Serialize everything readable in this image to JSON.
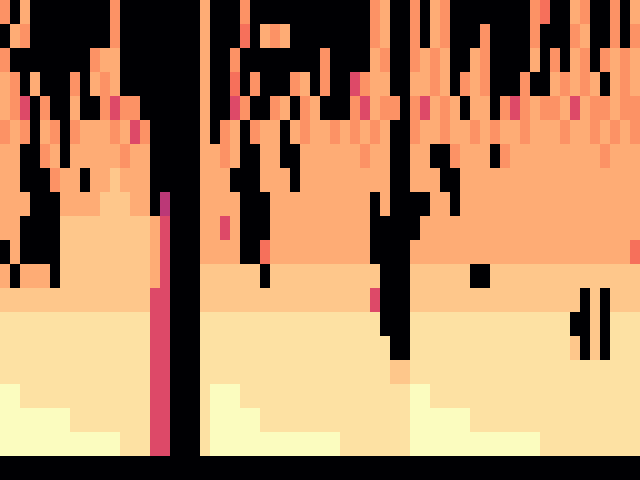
{
  "chart_data": {
    "type": "heatmap",
    "color": "magma",
    "tick_labels": false,
    "cells": [
      [
        75,
        0,
        80,
        0,
        0,
        0,
        0,
        0,
        0,
        0,
        0,
        75,
        0,
        0,
        0,
        0,
        0,
        0,
        0,
        0,
        80,
        0,
        0,
        0,
        75,
        0,
        0,
        0,
        0,
        0,
        0,
        0,
        0,
        0,
        0,
        0,
        0,
        75,
        80,
        0,
        0,
        75,
        0,
        80,
        75,
        0,
        0,
        0,
        0,
        0,
        0,
        0,
        0,
        75,
        68,
        0,
        0,
        80,
        75,
        0,
        0,
        75,
        0,
        80
      ],
      [
        0,
        80,
        75,
        0,
        0,
        0,
        0,
        0,
        0,
        0,
        0,
        75,
        0,
        0,
        0,
        0,
        0,
        0,
        0,
        0,
        80,
        0,
        0,
        0,
        68,
        0,
        80,
        75,
        80,
        0,
        0,
        0,
        0,
        0,
        0,
        0,
        0,
        75,
        80,
        0,
        0,
        75,
        0,
        80,
        75,
        0,
        0,
        0,
        75,
        0,
        0,
        0,
        0,
        75,
        0,
        0,
        0,
        75,
        80,
        0,
        0,
        75,
        0,
        75
      ],
      [
        75,
        0,
        0,
        0,
        0,
        0,
        0,
        0,
        0,
        75,
        80,
        80,
        0,
        0,
        0,
        0,
        0,
        0,
        0,
        0,
        80,
        0,
        0,
        75,
        0,
        0,
        0,
        0,
        0,
        0,
        0,
        0,
        75,
        0,
        0,
        0,
        0,
        80,
        75,
        0,
        0,
        75,
        80,
        75,
        80,
        0,
        0,
        80,
        75,
        0,
        0,
        0,
        0,
        80,
        0,
        75,
        0,
        80,
        75,
        0,
        75,
        80,
        75,
        80
      ],
      [
        80,
        75,
        0,
        80,
        0,
        0,
        0,
        75,
        0,
        80,
        75,
        80,
        0,
        0,
        0,
        0,
        0,
        0,
        0,
        0,
        80,
        0,
        0,
        68,
        0,
        75,
        0,
        0,
        0,
        75,
        80,
        0,
        75,
        0,
        0,
        58,
        75,
        80,
        80,
        0,
        0,
        80,
        80,
        75,
        80,
        0,
        75,
        80,
        75,
        0,
        0,
        0,
        75,
        0,
        0,
        80,
        75,
        80,
        75,
        80,
        0,
        80,
        75,
        80
      ],
      [
        80,
        75,
        58,
        0,
        75,
        0,
        0,
        80,
        0,
        0,
        75,
        58,
        75,
        75,
        0,
        0,
        0,
        0,
        0,
        0,
        80,
        0,
        0,
        58,
        75,
        0,
        0,
        75,
        80,
        0,
        75,
        80,
        0,
        0,
        0,
        75,
        58,
        80,
        75,
        75,
        0,
        75,
        58,
        80,
        75,
        80,
        0,
        80,
        80,
        0,
        75,
        58,
        75,
        80,
        75,
        75,
        80,
        58,
        80,
        75,
        75,
        80,
        75,
        75
      ],
      [
        75,
        80,
        75,
        0,
        80,
        75,
        0,
        75,
        80,
        80,
        80,
        75,
        80,
        58,
        75,
        0,
        0,
        0,
        0,
        0,
        80,
        0,
        75,
        80,
        0,
        75,
        80,
        80,
        0,
        80,
        75,
        80,
        80,
        75,
        80,
        75,
        80,
        75,
        80,
        0,
        0,
        75,
        80,
        80,
        75,
        80,
        80,
        75,
        80,
        75,
        80,
        80,
        75,
        80,
        80,
        80,
        75,
        80,
        80,
        75,
        80,
        75,
        80,
        75
      ],
      [
        80,
        80,
        0,
        0,
        75,
        80,
        0,
        80,
        80,
        80,
        80,
        80,
        75,
        80,
        80,
        0,
        0,
        0,
        0,
        0,
        80,
        80,
        75,
        80,
        0,
        0,
        80,
        80,
        0,
        0,
        80,
        80,
        80,
        80,
        80,
        80,
        75,
        80,
        80,
        0,
        0,
        80,
        80,
        0,
        0,
        75,
        80,
        80,
        80,
        0,
        75,
        80,
        80,
        80,
        80,
        80,
        80,
        80,
        80,
        80,
        75,
        80,
        80,
        80
      ],
      [
        80,
        80,
        0,
        0,
        0,
        75,
        80,
        80,
        0,
        80,
        80,
        86,
        80,
        80,
        80,
        0,
        0,
        0,
        0,
        0,
        80,
        80,
        80,
        0,
        0,
        0,
        80,
        80,
        80,
        0,
        80,
        80,
        80,
        80,
        80,
        80,
        80,
        80,
        80,
        0,
        0,
        80,
        80,
        80,
        0,
        0,
        80,
        80,
        80,
        80,
        80,
        80,
        80,
        80,
        80,
        80,
        80,
        80,
        80,
        80,
        80,
        80,
        80,
        80
      ],
      [
        80,
        80,
        80,
        0,
        0,
        0,
        80,
        80,
        80,
        80,
        86,
        86,
        86,
        80,
        80,
        0,
        50,
        0,
        0,
        0,
        80,
        80,
        80,
        80,
        0,
        0,
        0,
        80,
        80,
        80,
        80,
        80,
        80,
        80,
        80,
        80,
        80,
        0,
        80,
        0,
        0,
        0,
        0,
        80,
        80,
        0,
        80,
        80,
        80,
        80,
        80,
        80,
        80,
        80,
        80,
        80,
        80,
        80,
        80,
        80,
        80,
        80,
        80,
        80
      ],
      [
        80,
        80,
        0,
        0,
        0,
        0,
        86,
        86,
        86,
        86,
        86,
        86,
        86,
        86,
        86,
        80,
        58,
        0,
        0,
        0,
        80,
        80,
        58,
        80,
        0,
        0,
        0,
        80,
        80,
        80,
        80,
        80,
        80,
        80,
        80,
        80,
        80,
        0,
        0,
        0,
        0,
        0,
        80,
        80,
        80,
        80,
        80,
        80,
        80,
        80,
        80,
        80,
        80,
        80,
        80,
        80,
        80,
        80,
        80,
        80,
        80,
        80,
        80,
        80
      ],
      [
        0,
        80,
        0,
        0,
        0,
        0,
        86,
        86,
        86,
        86,
        86,
        86,
        86,
        86,
        86,
        80,
        58,
        0,
        0,
        0,
        80,
        80,
        80,
        80,
        0,
        0,
        68,
        80,
        80,
        80,
        80,
        80,
        80,
        80,
        80,
        80,
        80,
        0,
        0,
        0,
        0,
        80,
        80,
        80,
        80,
        80,
        80,
        80,
        80,
        80,
        80,
        80,
        80,
        80,
        80,
        80,
        80,
        80,
        80,
        80,
        80,
        80,
        80,
        68
      ],
      [
        80,
        0,
        80,
        80,
        80,
        0,
        86,
        86,
        86,
        86,
        86,
        86,
        86,
        86,
        86,
        80,
        58,
        0,
        0,
        0,
        86,
        86,
        86,
        86,
        86,
        86,
        0,
        86,
        86,
        86,
        86,
        86,
        86,
        86,
        86,
        86,
        86,
        86,
        0,
        0,
        0,
        86,
        86,
        86,
        86,
        86,
        86,
        0,
        0,
        86,
        86,
        86,
        86,
        86,
        86,
        86,
        86,
        86,
        86,
        86,
        86,
        86,
        86,
        86
      ],
      [
        86,
        86,
        86,
        86,
        86,
        86,
        86,
        86,
        86,
        86,
        86,
        86,
        86,
        86,
        86,
        58,
        58,
        0,
        0,
        0,
        86,
        86,
        86,
        86,
        86,
        86,
        86,
        86,
        86,
        86,
        86,
        86,
        86,
        86,
        86,
        86,
        86,
        58,
        0,
        0,
        0,
        86,
        86,
        86,
        86,
        86,
        86,
        86,
        86,
        86,
        86,
        86,
        86,
        86,
        86,
        86,
        86,
        86,
        0,
        86,
        0,
        86,
        86,
        86
      ],
      [
        91,
        91,
        91,
        91,
        91,
        91,
        91,
        91,
        91,
        91,
        91,
        91,
        91,
        91,
        91,
        58,
        58,
        0,
        0,
        0,
        91,
        91,
        91,
        91,
        91,
        91,
        91,
        91,
        91,
        91,
        91,
        91,
        91,
        91,
        91,
        91,
        91,
        91,
        0,
        0,
        0,
        91,
        91,
        91,
        91,
        91,
        91,
        91,
        91,
        91,
        91,
        91,
        91,
        91,
        91,
        91,
        91,
        0,
        0,
        86,
        0,
        91,
        91,
        91
      ],
      [
        91,
        91,
        91,
        91,
        91,
        91,
        91,
        91,
        91,
        91,
        91,
        91,
        91,
        91,
        91,
        58,
        58,
        0,
        0,
        0,
        91,
        91,
        91,
        91,
        91,
        91,
        91,
        91,
        91,
        91,
        91,
        91,
        91,
        91,
        91,
        91,
        91,
        91,
        91,
        0,
        0,
        91,
        91,
        91,
        91,
        91,
        91,
        91,
        91,
        91,
        91,
        91,
        91,
        91,
        91,
        91,
        91,
        86,
        0,
        86,
        0,
        91,
        91,
        91
      ],
      [
        91,
        91,
        91,
        91,
        91,
        91,
        91,
        91,
        91,
        91,
        91,
        91,
        91,
        91,
        91,
        58,
        58,
        0,
        0,
        0,
        91,
        91,
        91,
        91,
        91,
        91,
        91,
        91,
        91,
        91,
        91,
        91,
        91,
        91,
        91,
        91,
        91,
        91,
        91,
        86,
        86,
        91,
        91,
        91,
        91,
        91,
        91,
        91,
        91,
        91,
        91,
        91,
        91,
        91,
        91,
        91,
        91,
        91,
        91,
        91,
        91,
        91,
        91,
        91
      ],
      [
        97,
        97,
        91,
        91,
        91,
        91,
        91,
        91,
        91,
        91,
        91,
        91,
        91,
        91,
        91,
        58,
        58,
        0,
        0,
        0,
        91,
        97,
        97,
        97,
        91,
        91,
        91,
        91,
        91,
        91,
        91,
        91,
        91,
        91,
        91,
        91,
        91,
        91,
        91,
        91,
        91,
        97,
        97,
        91,
        91,
        91,
        91,
        91,
        91,
        91,
        91,
        91,
        91,
        91,
        91,
        91,
        91,
        91,
        91,
        91,
        91,
        91,
        91,
        91
      ],
      [
        97,
        97,
        97,
        97,
        97,
        97,
        97,
        91,
        91,
        91,
        91,
        91,
        91,
        91,
        91,
        58,
        58,
        0,
        0,
        0,
        91,
        97,
        97,
        97,
        97,
        97,
        91,
        91,
        91,
        91,
        91,
        91,
        91,
        91,
        91,
        91,
        91,
        91,
        91,
        91,
        91,
        97,
        97,
        97,
        97,
        97,
        97,
        91,
        91,
        91,
        91,
        91,
        91,
        91,
        91,
        91,
        91,
        91,
        91,
        91,
        91,
        91,
        91,
        91
      ],
      [
        97,
        97,
        97,
        97,
        97,
        97,
        97,
        97,
        97,
        97,
        97,
        97,
        91,
        91,
        91,
        58,
        58,
        0,
        0,
        0,
        91,
        97,
        97,
        97,
        97,
        97,
        97,
        97,
        97,
        97,
        97,
        97,
        97,
        97,
        91,
        91,
        91,
        91,
        91,
        91,
        91,
        97,
        97,
        97,
        97,
        97,
        97,
        97,
        97,
        97,
        97,
        97,
        97,
        97,
        91,
        91,
        91,
        91,
        91,
        91,
        91,
        91,
        91,
        91
      ],
      [
        0,
        0,
        0,
        0,
        0,
        0,
        0,
        0,
        0,
        0,
        0,
        0,
        0,
        0,
        0,
        0,
        0,
        0,
        0,
        0,
        0,
        0,
        0,
        0,
        0,
        0,
        0,
        0,
        0,
        0,
        0,
        0,
        0,
        0,
        0,
        0,
        0,
        0,
        0,
        0,
        0,
        0,
        0,
        0,
        0,
        0,
        0,
        0,
        0,
        0,
        0,
        0,
        0,
        0,
        0,
        0,
        0,
        0,
        0,
        0,
        0,
        0,
        0,
        0
      ]
    ]
  }
}
